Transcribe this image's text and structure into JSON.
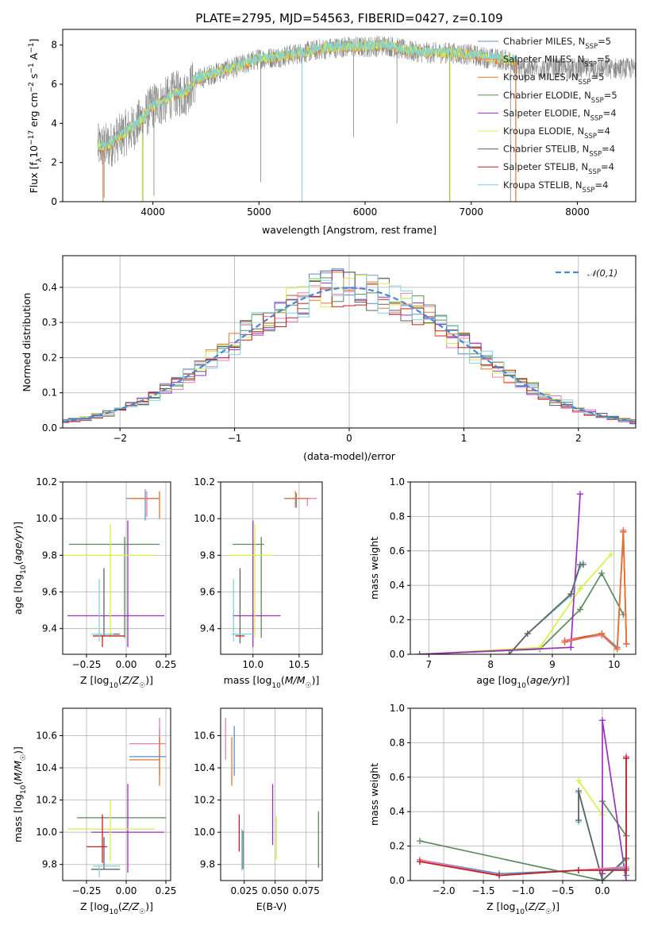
{
  "figure_title": "PLATE=2795, MJD=54563, FIBERID=0427, z=0.109",
  "colors": {
    "Chabrier MILES": "#5b8fd4",
    "Salpeter MILES": "#f07ab0",
    "Kroupa MILES": "#e8742a",
    "Chabrier ELODIE": "#5a8a5a",
    "Salpeter ELODIE": "#9b2fc0",
    "Kroupa ELODIE": "#d8ef4a",
    "Chabrier STELIB": "#606060",
    "Salpeter STELIB": "#c42020",
    "Kroupa STELIB": "#7dd4dc"
  },
  "chart_data": [
    {
      "id": "spectrum",
      "type": "line",
      "title": "PLATE=2795, MJD=54563, FIBERID=0427, z=0.109",
      "xlabel": "wavelength [Angstrom, rest frame]",
      "ylabel": "Flux [f_λ 10^-17 erg cm^-2 s^-1 A^-1]",
      "xlim": [
        3150,
        8550
      ],
      "ylim": [
        0,
        8.8
      ],
      "xticks": [
        4000,
        5000,
        6000,
        7000,
        8000
      ],
      "yticks": [
        0,
        2,
        4,
        6,
        8
      ],
      "grid": false,
      "legend_position": "right",
      "series": [
        {
          "name": "Chabrier MILES, N_SSP=5",
          "name_main": "Chabrier MILES, N",
          "name_sub": "SSP",
          "name_tail": "=5"
        },
        {
          "name": "Salpeter MILES, N_SSP=5",
          "name_main": "Salpeter MILES, N",
          "name_sub": "SSP",
          "name_tail": "=5"
        },
        {
          "name": "Kroupa MILES, N_SSP=5",
          "name_main": "Kroupa MILES, N",
          "name_sub": "SSP",
          "name_tail": "=5"
        },
        {
          "name": "Chabrier ELODIE, N_SSP=5",
          "name_main": "Chabrier ELODIE, N",
          "name_sub": "SSP",
          "name_tail": "=5"
        },
        {
          "name": "Salpeter ELODIE, N_SSP=4",
          "name_main": "Salpeter ELODIE, N",
          "name_sub": "SSP",
          "name_tail": "=4"
        },
        {
          "name": "Kroupa ELODIE, N_SSP=4",
          "name_main": "Kroupa ELODIE, N",
          "name_sub": "SSP",
          "name_tail": "=4"
        },
        {
          "name": "Chabrier STELIB, N_SSP=4",
          "name_main": "Chabrier STELIB, N",
          "name_sub": "SSP",
          "name_tail": "=4"
        },
        {
          "name": "Salpeter STELIB, N_SSP=4",
          "name_main": "Salpeter STELIB, N",
          "name_sub": "SSP",
          "name_tail": "=4"
        },
        {
          "name": "Kroupa STELIB, N_SSP=4",
          "name_main": "Kroupa STELIB, N",
          "name_sub": "SSP",
          "name_tail": "=4"
        }
      ],
      "data_series_color": "#808080",
      "continuum": {
        "x": [
          3480,
          3600,
          3700,
          3800,
          3900,
          4000,
          4100,
          4200,
          4300,
          4400,
          4600,
          4800,
          5000,
          5200,
          5400,
          5600,
          5800,
          6000,
          6200,
          6400,
          6600,
          6800,
          7000,
          7200,
          7400
        ],
        "y": [
          2.8,
          2.9,
          3.4,
          3.7,
          4.2,
          4.9,
          5.1,
          5.5,
          5.5,
          6.2,
          6.6,
          6.9,
          7.3,
          7.4,
          7.6,
          7.8,
          7.9,
          7.9,
          8.0,
          7.7,
          7.6,
          7.6,
          7.5,
          7.3,
          7.2
        ]
      }
    },
    {
      "id": "residuals",
      "type": "bar",
      "xlabel": "(data-model)/error",
      "ylabel": "Normed distribution",
      "xlim": [
        -2.5,
        2.5
      ],
      "ylim": [
        0,
        0.49
      ],
      "xticks": [
        -2,
        -1,
        0,
        1,
        2
      ],
      "yticks": [
        0.0,
        0.1,
        0.2,
        0.3,
        0.4
      ],
      "grid": true,
      "reference_curve": {
        "name": "𝒩(0,1)",
        "mean": 0,
        "sigma": 1,
        "style": "dashed",
        "color": "#4a86d4"
      },
      "bin_width": 0.1,
      "legend_position": "top-right"
    },
    {
      "id": "age-vs-Z",
      "type": "scatter",
      "xlabel": "Z [log10(Z/Z☉)]",
      "ylabel": "age [log10(age/yr)]",
      "xlim": [
        -0.4,
        0.28
      ],
      "ylim": [
        9.26,
        10.2
      ],
      "xticks": [
        -0.25,
        0.0,
        0.25
      ],
      "yticks": [
        9.4,
        9.6,
        9.8,
        10.0,
        10.2
      ],
      "grid": true,
      "points": [
        {
          "model": "Chabrier MILES",
          "x": 0.12,
          "y": 10.11,
          "xerr": [
            0.12,
            0.09
          ],
          "yerr": [
            0.12,
            0.05
          ]
        },
        {
          "model": "Salpeter MILES",
          "x": 0.13,
          "y": 10.11,
          "xerr": [
            0.11,
            0.08
          ],
          "yerr": [
            0.1,
            0.04
          ]
        },
        {
          "model": "Kroupa MILES",
          "x": 0.21,
          "y": 10.11,
          "xerr": [
            0.19,
            0.0
          ],
          "yerr": [
            0.11,
            0.04
          ]
        },
        {
          "model": "Chabrier ELODIE",
          "x": -0.01,
          "y": 9.86,
          "xerr": [
            0.35,
            0.22
          ],
          "yerr": [
            0.51,
            0.04
          ]
        },
        {
          "model": "Salpeter ELODIE",
          "x": 0.01,
          "y": 9.47,
          "xerr": [
            0.38,
            0.23
          ],
          "yerr": [
            0.17,
            0.52
          ]
        },
        {
          "model": "Kroupa ELODIE",
          "x": -0.1,
          "y": 9.8,
          "xerr": [
            0.3,
            0.28
          ],
          "yerr": [
            0.45,
            0.17
          ]
        },
        {
          "model": "Chabrier STELIB",
          "x": -0.14,
          "y": 9.37,
          "xerr": [
            0.05,
            0.1
          ],
          "yerr": [
            0.01,
            0.36
          ]
        },
        {
          "model": "Salpeter STELIB",
          "x": -0.15,
          "y": 9.36,
          "xerr": [
            0.06,
            0.14
          ],
          "yerr": [
            0.06,
            0.0
          ]
        },
        {
          "model": "Kroupa STELIB",
          "x": -0.17,
          "y": 9.37,
          "xerr": [
            0.05,
            0.09
          ],
          "yerr": [
            0.04,
            0.3
          ]
        }
      ]
    },
    {
      "id": "age-vs-mass",
      "type": "scatter",
      "xlabel": "mass [log10(M/M☉)]",
      "ylabel": "",
      "xlim": [
        9.65,
        10.75
      ],
      "ylim": [
        9.26,
        10.2
      ],
      "xticks": [
        10.0,
        10.5
      ],
      "yticks": [
        9.4,
        9.6,
        9.8,
        10.0,
        10.2
      ],
      "grid": true,
      "points": [
        {
          "model": "Chabrier MILES",
          "x": 10.47,
          "y": 10.11,
          "xerr": [
            0.13,
            0.15
          ],
          "yerr": [
            0.05,
            0.03
          ]
        },
        {
          "model": "Salpeter MILES",
          "x": 10.59,
          "y": 10.11,
          "xerr": [
            0.14,
            0.1
          ],
          "yerr": [
            0.04,
            0.0
          ]
        },
        {
          "model": "Kroupa MILES",
          "x": 10.46,
          "y": 10.11,
          "xerr": [
            0.12,
            0.14
          ],
          "yerr": [
            0.05,
            0.04
          ]
        },
        {
          "model": "Chabrier ELODIE",
          "x": 10.09,
          "y": 9.86,
          "xerr": [
            0.31,
            0.03
          ],
          "yerr": [
            0.51,
            0.04
          ]
        },
        {
          "model": "Salpeter ELODIE",
          "x": 10.0,
          "y": 9.47,
          "xerr": [
            0.22,
            0.3
          ],
          "yerr": [
            0.17,
            0.52
          ]
        },
        {
          "model": "Kroupa ELODIE",
          "x": 10.02,
          "y": 9.8,
          "xerr": [
            0.28,
            0.2
          ],
          "yerr": [
            0.45,
            0.17
          ]
        },
        {
          "model": "Chabrier STELIB",
          "x": 9.86,
          "y": 9.37,
          "xerr": [
            0.07,
            0.0
          ],
          "yerr": [
            0.05,
            0.36
          ]
        },
        {
          "model": "Salpeter STELIB",
          "x": 9.91,
          "y": 9.36,
          "xerr": [
            0.1,
            0.0
          ],
          "yerr": [
            0.0,
            0.0
          ]
        },
        {
          "model": "Kroupa STELIB",
          "x": 9.79,
          "y": 9.37,
          "xerr": [
            0.02,
            0.21
          ],
          "yerr": [
            0.04,
            0.3
          ]
        }
      ]
    },
    {
      "id": "weight-vs-age",
      "type": "line",
      "xlabel": "age [log10(age/yr)]",
      "ylabel": "mass weight",
      "xlim": [
        6.7,
        10.35
      ],
      "ylim": [
        0,
        1.0
      ],
      "xticks": [
        7,
        8,
        9,
        10
      ],
      "yticks": [
        0.0,
        0.2,
        0.4,
        0.6,
        0.8,
        1.0
      ],
      "grid": true,
      "series": [
        {
          "model": "Chabrier ELODIE",
          "x": [
            6.85,
            8.8,
            9.45,
            9.8,
            10.15
          ],
          "y": [
            0.0,
            0.03,
            0.26,
            0.47,
            0.23
          ]
        },
        {
          "model": "Kroupa ELODIE",
          "x": [
            6.85,
            8.8,
            9.45,
            9.95
          ],
          "y": [
            0.0,
            0.04,
            0.38,
            0.58
          ]
        },
        {
          "model": "Salpeter ELODIE",
          "x": [
            6.85,
            9.3,
            9.45
          ],
          "y": [
            0.0,
            0.04,
            0.93
          ]
        },
        {
          "model": "Kroupa STELIB",
          "x": [
            8.3,
            8.6,
            9.3,
            9.45,
            9.5
          ],
          "y": [
            0.0,
            0.12,
            0.34,
            0.51,
            0.53
          ]
        },
        {
          "model": "Chabrier STELIB",
          "x": [
            8.3,
            8.6,
            9.3,
            9.45,
            9.5
          ],
          "y": [
            0.0,
            0.12,
            0.35,
            0.52,
            0.52
          ]
        },
        {
          "model": "Salpeter STELIB",
          "x": [
            9.2,
            9.8,
            10.05,
            10.15,
            10.2
          ],
          "y": [
            0.08,
            0.12,
            0.03,
            0.71,
            0.06
          ]
        },
        {
          "model": "Chabrier MILES",
          "x": [
            9.2,
            9.8,
            10.05,
            10.15,
            10.2
          ],
          "y": [
            0.07,
            0.12,
            0.04,
            0.72,
            0.06
          ]
        },
        {
          "model": "Salpeter MILES",
          "x": [
            9.2,
            9.8,
            10.05,
            10.15,
            10.2
          ],
          "y": [
            0.08,
            0.11,
            0.03,
            0.72,
            0.06
          ]
        },
        {
          "model": "Kroupa MILES",
          "x": [
            9.2,
            9.8,
            10.05,
            10.15,
            10.2
          ],
          "y": [
            0.07,
            0.12,
            0.03,
            0.71,
            0.06
          ]
        }
      ]
    },
    {
      "id": "mass-vs-Z",
      "type": "scatter",
      "xlabel": "Z [log10(Z/Z☉)]",
      "ylabel": "mass [log10(M/M☉)]",
      "xlim": [
        -0.4,
        0.28
      ],
      "ylim": [
        9.7,
        10.77
      ],
      "xticks": [
        -0.25,
        0.0,
        0.25
      ],
      "yticks": [
        9.8,
        10.0,
        10.2,
        10.4,
        10.6
      ],
      "grid": true,
      "points": [
        {
          "model": "Chabrier MILES",
          "x": 0.21,
          "y": 10.47,
          "xerr": [
            0.19,
            0.04
          ],
          "yerr": [
            0.12,
            0.18
          ]
        },
        {
          "model": "Salpeter MILES",
          "x": 0.21,
          "y": 10.55,
          "xerr": [
            0.19,
            0.04
          ],
          "yerr": [
            0.0,
            0.16
          ]
        },
        {
          "model": "Kroupa MILES",
          "x": 0.21,
          "y": 10.45,
          "xerr": [
            0.19,
            0.0
          ],
          "yerr": [
            0.16,
            0.14
          ]
        },
        {
          "model": "Chabrier ELODIE",
          "x": -0.01,
          "y": 10.09,
          "xerr": [
            0.3,
            0.26
          ],
          "yerr": [
            0.0,
            0.0
          ]
        },
        {
          "model": "Salpeter ELODIE",
          "x": 0.01,
          "y": 10.0,
          "xerr": [
            0.23,
            0.23
          ],
          "yerr": [
            0.25,
            0.3
          ]
        },
        {
          "model": "Kroupa ELODIE",
          "x": -0.1,
          "y": 10.02,
          "xerr": [
            0.27,
            0.28
          ],
          "yerr": [
            0.2,
            0.18
          ]
        },
        {
          "model": "Chabrier STELIB",
          "x": -0.14,
          "y": 9.77,
          "xerr": [
            0.08,
            0.1
          ],
          "yerr": [
            0.0,
            0.2
          ]
        },
        {
          "model": "Salpeter STELIB",
          "x": -0.15,
          "y": 9.91,
          "xerr": [
            0.1,
            0.03
          ],
          "yerr": [
            0.1,
            0.2
          ]
        },
        {
          "model": "Kroupa STELIB",
          "x": -0.17,
          "y": 9.79,
          "xerr": [
            0.04,
            0.13
          ],
          "yerr": [
            0.07,
            0.0
          ]
        }
      ]
    },
    {
      "id": "mass-vs-EBV",
      "type": "scatter",
      "xlabel": "E(B-V)",
      "ylabel": "",
      "xlim": [
        0.006,
        0.088
      ],
      "ylim": [
        9.7,
        10.77
      ],
      "xticks": [
        0.025,
        0.05,
        0.075
      ],
      "xticklabels": [
        "0.025",
        "0.050",
        "0.075"
      ],
      "yticks": [
        9.8,
        10.0,
        10.2,
        10.4,
        10.6
      ],
      "grid": true,
      "points": [
        {
          "model": "Chabrier MILES",
          "x": 0.017,
          "y": 10.47,
          "yerr": [
            0.12,
            0.19
          ]
        },
        {
          "model": "Salpeter MILES",
          "x": 0.01,
          "y": 10.55,
          "yerr": [
            0.1,
            0.16
          ]
        },
        {
          "model": "Kroupa MILES",
          "x": 0.015,
          "y": 10.45,
          "yerr": [
            0.16,
            0.14
          ]
        },
        {
          "model": "Chabrier ELODIE",
          "x": 0.085,
          "y": 9.91,
          "yerr": [
            0.13,
            0.22
          ]
        },
        {
          "model": "Salpeter ELODIE",
          "x": 0.048,
          "y": 10.05,
          "yerr": [
            0.13,
            0.25
          ]
        },
        {
          "model": "Kroupa ELODIE",
          "x": 0.051,
          "y": 9.95,
          "yerr": [
            0.12,
            0.15
          ]
        },
        {
          "model": "Chabrier STELIB",
          "x": 0.024,
          "y": 9.9,
          "yerr": [
            0.13,
            0.11
          ]
        },
        {
          "model": "Salpeter STELIB",
          "x": 0.021,
          "y": 10.0,
          "yerr": [
            0.12,
            0.11
          ]
        },
        {
          "model": "Kroupa STELIB",
          "x": 0.023,
          "y": 9.88,
          "yerr": [
            0.12,
            0.14
          ]
        }
      ]
    },
    {
      "id": "weight-vs-Z",
      "type": "line",
      "xlabel": "Z [log10(Z/Z☉)]",
      "ylabel": "mass weight",
      "xlim": [
        -2.42,
        0.42
      ],
      "ylim": [
        0,
        1.0
      ],
      "xticks": [
        -2.0,
        -1.5,
        -1.0,
        -0.5,
        0.0
      ],
      "yticks": [
        0.0,
        0.2,
        0.4,
        0.6,
        0.8,
        1.0
      ],
      "grid": true,
      "series": [
        {
          "model": "Chabrier ELODIE",
          "x": [
            -2.3,
            0.0,
            0.0,
            0.3,
            0.3
          ],
          "y": [
            0.23,
            0.0,
            0.46,
            0.26,
            0.03
          ]
        },
        {
          "model": "Kroupa ELODIE",
          "x": [
            -0.3,
            0.0,
            0.0
          ],
          "y": [
            0.58,
            0.38,
            0.0
          ]
        },
        {
          "model": "Salpeter ELODIE",
          "x": [
            0.0,
            0.0,
            0.3
          ],
          "y": [
            0.04,
            0.93,
            0.0
          ]
        },
        {
          "model": "Kroupa STELIB",
          "x": [
            -0.3,
            -0.3,
            0.0,
            0.3
          ],
          "y": [
            0.34,
            0.51,
            0.0,
            0.12
          ]
        },
        {
          "model": "Chabrier STELIB",
          "x": [
            -0.3,
            -0.3,
            0.0,
            0.3
          ],
          "y": [
            0.35,
            0.52,
            0.0,
            0.13
          ]
        },
        {
          "model": "Kroupa MILES",
          "x": [
            -2.3,
            -1.3,
            -0.3,
            0.3,
            0.3
          ],
          "y": [
            0.11,
            0.03,
            0.06,
            0.07,
            0.71
          ]
        },
        {
          "model": "Chabrier MILES",
          "x": [
            -2.3,
            -1.3,
            -0.3,
            0.3,
            0.3
          ],
          "y": [
            0.12,
            0.04,
            0.06,
            0.07,
            0.72
          ]
        },
        {
          "model": "Salpeter MILES",
          "x": [
            -2.3,
            -1.3,
            -0.3,
            0.3,
            0.3
          ],
          "y": [
            0.12,
            0.03,
            0.06,
            0.08,
            0.72
          ]
        },
        {
          "model": "Salpeter STELIB",
          "x": [
            -2.3,
            -1.3,
            -0.3,
            0.3,
            0.3
          ],
          "y": [
            0.11,
            0.03,
            0.06,
            0.06,
            0.71
          ]
        }
      ]
    }
  ]
}
